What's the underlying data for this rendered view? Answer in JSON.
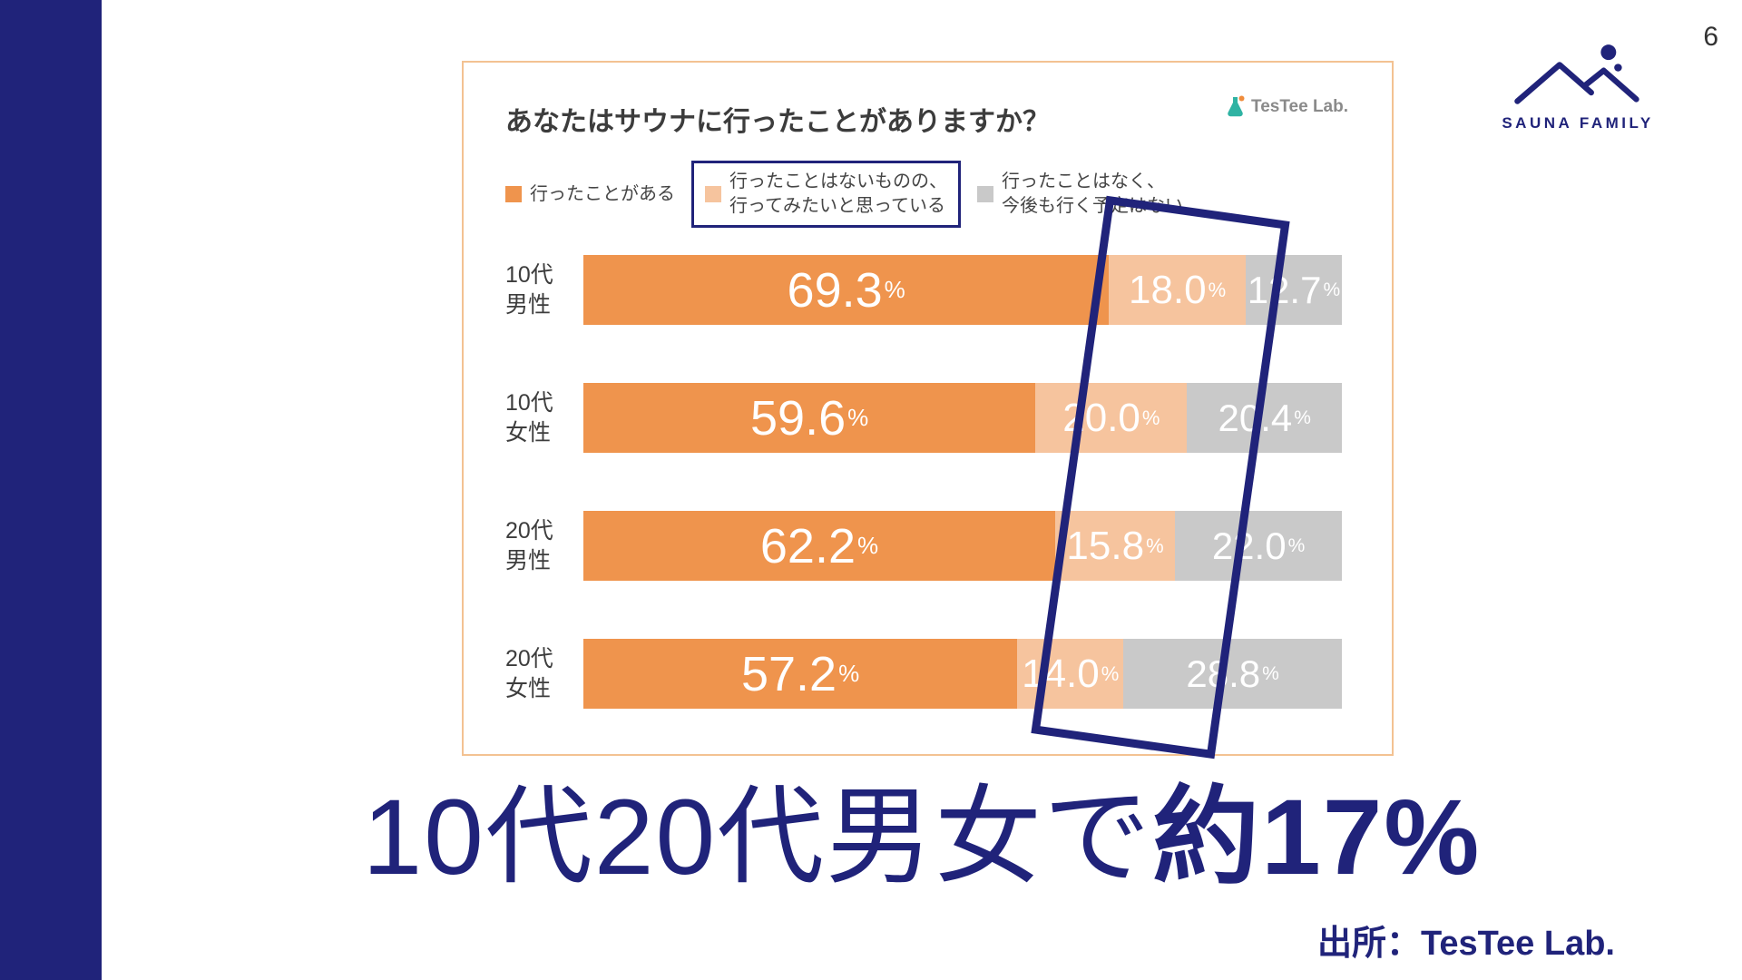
{
  "theme": {
    "navy": "#20237a",
    "orange": "#ef944d",
    "light_orange": "#f6c49e",
    "gray": "#c9c9c9",
    "card_border": "#f3c292"
  },
  "page": {
    "number": "6"
  },
  "logo": {
    "text": "SAUNA FAMILY"
  },
  "chart_card": {
    "title": "あなたはサウナに行ったことがありますか？",
    "brand": "TesTee Lab."
  },
  "legend": {
    "items": [
      {
        "label_lines": [
          "行ったことがある"
        ],
        "color": "#ef944d",
        "boxed": false
      },
      {
        "label_lines": [
          "行ったことはないものの、",
          "行ってみたいと思っている"
        ],
        "color": "#f6c49e",
        "boxed": true
      },
      {
        "label_lines": [
          "行ったことはなく、",
          "今後も行く予定はない"
        ],
        "color": "#c9c9c9",
        "boxed": false
      }
    ]
  },
  "chart_data": {
    "type": "bar",
    "orientation": "horizontal",
    "stacked": true,
    "title": "あなたはサウナに行ったことがありますか？",
    "categories": [
      "10代男性",
      "10代女性",
      "20代男性",
      "20代女性"
    ],
    "category_lines": [
      [
        "10代",
        "男性"
      ],
      [
        "10代",
        "女性"
      ],
      [
        "20代",
        "男性"
      ],
      [
        "20代",
        "女性"
      ]
    ],
    "series": [
      {
        "name": "行ったことがある",
        "color": "#ef944d",
        "values": [
          69.3,
          59.6,
          62.2,
          57.2
        ]
      },
      {
        "name": "行ったことはないものの、行ってみたいと思っている",
        "color": "#f6c49e",
        "values": [
          18.0,
          20.0,
          15.8,
          14.0
        ]
      },
      {
        "name": "行ったことはなく、今後も行く予定はない",
        "color": "#c9c9c9",
        "values": [
          12.7,
          20.4,
          22.0,
          28.8
        ]
      }
    ],
    "value_suffix": "%",
    "xlim": [
      0,
      100
    ],
    "legend_position": "top",
    "grid": false
  },
  "headline": {
    "regular": "10代20代男女で",
    "bold": "約17%"
  },
  "source": {
    "text": "出所：TesTee Lab."
  }
}
